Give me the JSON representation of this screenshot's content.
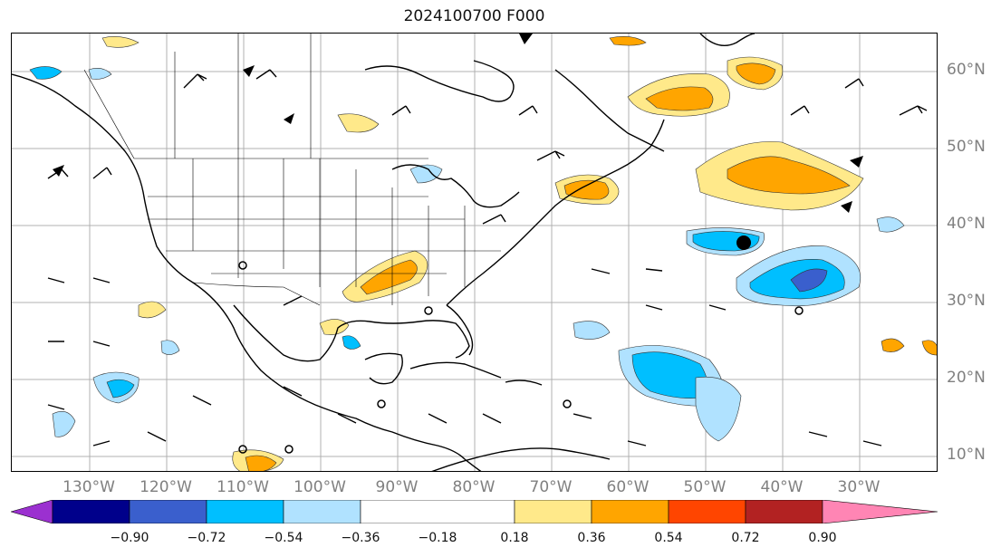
{
  "title": "2024100700 F000",
  "map": {
    "lat_labels": [
      "60°N",
      "50°N",
      "40°N",
      "30°N",
      "20°N",
      "10°N"
    ],
    "lon_labels": [
      "130°W",
      "120°W",
      "110°W",
      "100°W",
      "90°W",
      "80°W",
      "70°W",
      "60°W",
      "50°W",
      "40°W",
      "30°W"
    ],
    "grid": true
  },
  "colorbar": {
    "extend": "both",
    "tick_labels": [
      "−0.90",
      "−0.72",
      "−0.54",
      "−0.36",
      "−0.18",
      "0.18",
      "0.36",
      "0.54",
      "0.72",
      "0.90"
    ],
    "colors": {
      "under": "#9b30d0",
      "b1": "#00008b",
      "b2": "#3a5fcd",
      "b3": "#00bfff",
      "b4": "#b0e2ff",
      "b5": "#ffffff",
      "b6": "#ffe98a",
      "b7": "#ffa500",
      "b8": "#ff4500",
      "b9": "#b22222",
      "over": "#ff85b4"
    }
  }
}
